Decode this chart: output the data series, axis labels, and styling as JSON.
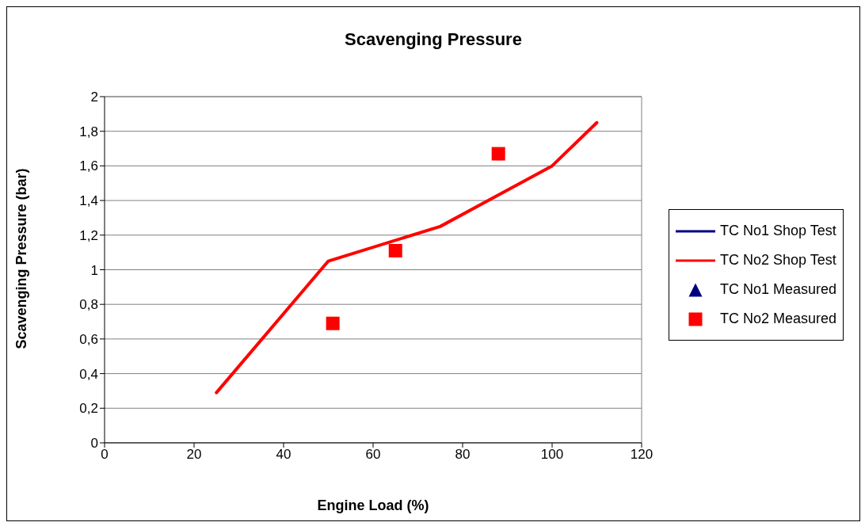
{
  "chart_data": {
    "type": "line",
    "title": "Scavenging Pressure",
    "xlabel": "Engine Load (%)",
    "ylabel": "Scavenging Pressure (bar)",
    "xlim": [
      0,
      120
    ],
    "xticks": [
      0,
      20,
      40,
      60,
      80,
      100,
      120
    ],
    "ylim": [
      0,
      2
    ],
    "yticks": [
      0,
      {
        "value": 0.2,
        "label": "0,2"
      },
      {
        "value": 0.4,
        "label": "0,4"
      },
      {
        "value": 0.6,
        "label": "0,6"
      },
      {
        "value": 0.8,
        "label": "0,8"
      },
      1,
      {
        "value": 1.2,
        "label": "1,2"
      },
      {
        "value": 1.4,
        "label": "1,4"
      },
      {
        "value": 1.6,
        "label": "1,6"
      },
      {
        "value": 1.8,
        "label": "1,8"
      },
      2
    ],
    "grid": "y",
    "legend": "right",
    "series": [
      {
        "name": "TC No1 Shop Test",
        "color": "#000080"
      },
      {
        "name": "TC No2 Shop Test",
        "color": "#ff0000",
        "x": [
          25,
          50,
          75,
          100,
          110
        ],
        "values": [
          0.29,
          1.05,
          1.25,
          1.6,
          1.85
        ]
      },
      {
        "name": "TC No1 Measured",
        "type": "scatter",
        "marker": "triangle",
        "color": "#000080"
      },
      {
        "name": "TC No2 Measured",
        "type": "scatter",
        "marker": "square",
        "color": "#ff0000",
        "x": [
          51,
          65,
          88
        ],
        "values": [
          0.69,
          1.11,
          1.67
        ]
      }
    ]
  }
}
